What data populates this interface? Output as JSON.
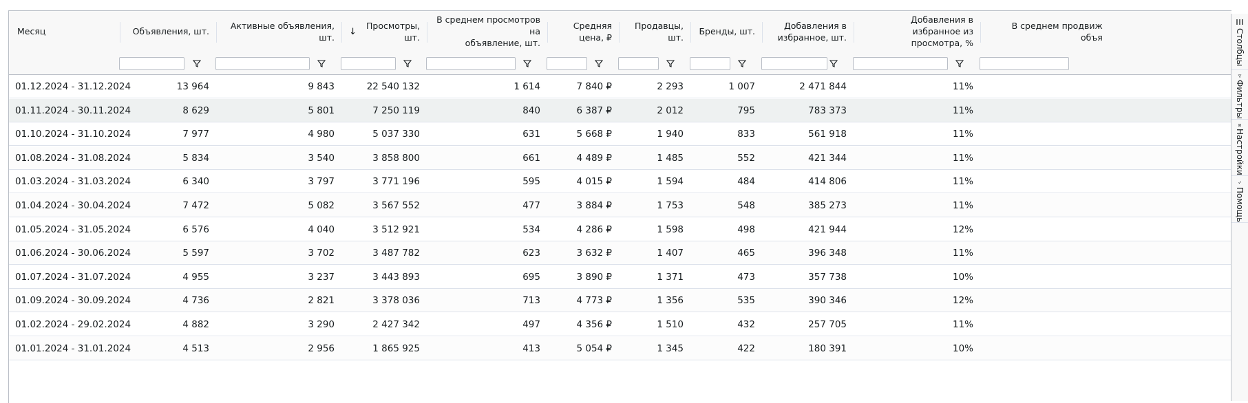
{
  "columns": [
    {
      "label": "Месяц"
    },
    {
      "label": "Объявления, шт."
    },
    {
      "label": "Активные объявления, шт."
    },
    {
      "label_line1": "Просмотры,",
      "label_line2": "шт.",
      "sort": "↓"
    },
    {
      "label_line1": "В среднем просмотров на",
      "label_line2": "объявление, шт."
    },
    {
      "label_line1": "Средняя",
      "label_line2": "цена, ₽"
    },
    {
      "label_line1": "Продавцы,",
      "label_line2": "шт."
    },
    {
      "label": "Бренды, шт."
    },
    {
      "label_line1": "Добавления в",
      "label_line2": "избранное, шт."
    },
    {
      "label_line1": "Добавления в избранное из",
      "label_line2": "просмотра, %"
    },
    {
      "label_line1": "В среднем продвиж",
      "label_line2": "объя"
    }
  ],
  "rows": [
    [
      "01.12.2024 - 31.12.2024",
      "13 964",
      "9 843",
      "22 540 132",
      "1 614",
      "7 840 ₽",
      "2 293",
      "1 007",
      "2 471 844",
      "11%"
    ],
    [
      "01.11.2024 - 30.11.2024",
      "8 629",
      "5 801",
      "7 250 119",
      "840",
      "6 387 ₽",
      "2 012",
      "795",
      "783 373",
      "11%"
    ],
    [
      "01.10.2024 - 31.10.2024",
      "7 977",
      "4 980",
      "5 037 330",
      "631",
      "5 668 ₽",
      "1 940",
      "833",
      "561 918",
      "11%"
    ],
    [
      "01.08.2024 - 31.08.2024",
      "5 834",
      "3 540",
      "3 858 800",
      "661",
      "4 489 ₽",
      "1 485",
      "552",
      "421 344",
      "11%"
    ],
    [
      "01.03.2024 - 31.03.2024",
      "6 340",
      "3 797",
      "3 771 196",
      "595",
      "4 015 ₽",
      "1 594",
      "484",
      "414 806",
      "11%"
    ],
    [
      "01.04.2024 - 30.04.2024",
      "7 472",
      "5 082",
      "3 567 552",
      "477",
      "3 884 ₽",
      "1 753",
      "548",
      "385 273",
      "11%"
    ],
    [
      "01.05.2024 - 31.05.2024",
      "6 576",
      "4 040",
      "3 512 921",
      "534",
      "4 286 ₽",
      "1 598",
      "498",
      "421 944",
      "12%"
    ],
    [
      "01.06.2024 - 30.06.2024",
      "5 597",
      "3 702",
      "3 487 782",
      "623",
      "3 632 ₽",
      "1 407",
      "465",
      "396 348",
      "11%"
    ],
    [
      "01.07.2024 - 31.07.2024",
      "4 955",
      "3 237",
      "3 443 893",
      "695",
      "3 890 ₽",
      "1 371",
      "473",
      "357 738",
      "10%"
    ],
    [
      "01.09.2024 - 30.09.2024",
      "4 736",
      "2 821",
      "3 378 036",
      "713",
      "4 773 ₽",
      "1 356",
      "535",
      "390 346",
      "12%"
    ],
    [
      "01.02.2024 - 29.02.2024",
      "4 882",
      "3 290",
      "2 427 342",
      "497",
      "4 356 ₽",
      "1 510",
      "432",
      "257 705",
      "11%"
    ],
    [
      "01.01.2024 - 31.01.2024",
      "4 513",
      "2 956",
      "1 865 925",
      "413",
      "5 054 ₽",
      "1 345",
      "422",
      "180 391",
      "10%"
    ]
  ],
  "sidebar": {
    "columns_label": "Столбцы",
    "filters_label": "Фильтры",
    "settings_label": "Настройки",
    "help_label": "Помощь"
  }
}
